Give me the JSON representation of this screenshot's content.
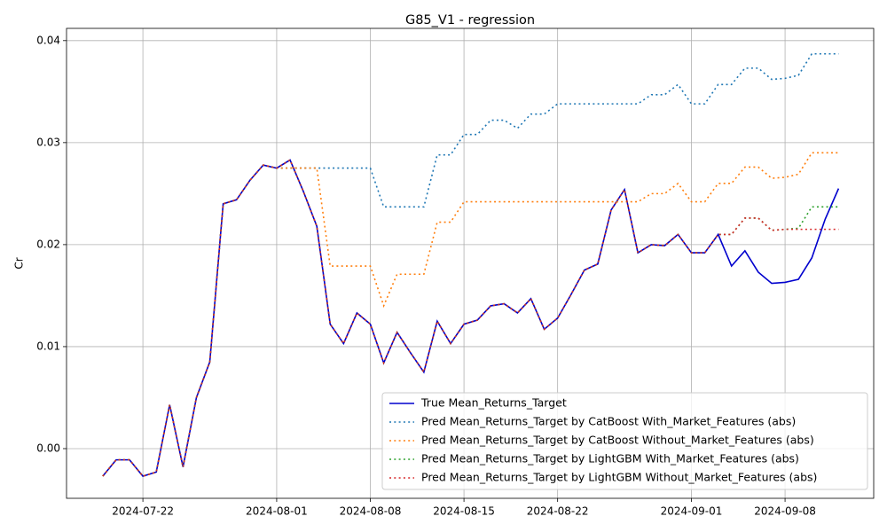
{
  "chart_data": {
    "type": "line",
    "title": "G85_V1 - regression",
    "ylabel": "Cr",
    "x": [
      "2024-07-19",
      "2024-07-20",
      "2024-07-21",
      "2024-07-22",
      "2024-07-23",
      "2024-07-24",
      "2024-07-25",
      "2024-07-26",
      "2024-07-27",
      "2024-07-28",
      "2024-07-29",
      "2024-07-30",
      "2024-07-31",
      "2024-08-01",
      "2024-08-02",
      "2024-08-03",
      "2024-08-04",
      "2024-08-05",
      "2024-08-06",
      "2024-08-07",
      "2024-08-08",
      "2024-08-09",
      "2024-08-10",
      "2024-08-11",
      "2024-08-12",
      "2024-08-13",
      "2024-08-14",
      "2024-08-15",
      "2024-08-16",
      "2024-08-17",
      "2024-08-18",
      "2024-08-19",
      "2024-08-20",
      "2024-08-21",
      "2024-08-22",
      "2024-08-23",
      "2024-08-24",
      "2024-08-25",
      "2024-08-26",
      "2024-08-27",
      "2024-08-28",
      "2024-08-29",
      "2024-08-30",
      "2024-08-31",
      "2024-09-01",
      "2024-09-02",
      "2024-09-03",
      "2024-09-04",
      "2024-09-05",
      "2024-09-06",
      "2024-09-07",
      "2024-09-08",
      "2024-09-09",
      "2024-09-10",
      "2024-09-11",
      "2024-09-12"
    ],
    "series": [
      {
        "name": "True Mean_Returns_Target",
        "color": "#0000cd",
        "linestyle": "solid",
        "values": [
          -0.0027,
          -0.0011,
          -0.0011,
          -0.0027,
          -0.0023,
          0.0043,
          -0.0018,
          0.005,
          0.0085,
          0.024,
          0.0244,
          0.0263,
          0.0278,
          0.0275,
          0.0283,
          0.0252,
          0.0218,
          0.0122,
          0.0103,
          0.0133,
          0.0122,
          0.0084,
          0.0114,
          0.0094,
          0.0075,
          0.0125,
          0.0103,
          0.0122,
          0.0126,
          0.014,
          0.0142,
          0.0133,
          0.0147,
          0.0117,
          0.0128,
          0.0151,
          0.0175,
          0.0181,
          0.0234,
          0.0254,
          0.0192,
          0.02,
          0.0199,
          0.021,
          0.0192,
          0.0192,
          0.021,
          0.0179,
          0.0194,
          0.0173,
          0.0162,
          0.0163,
          0.0166,
          0.0187,
          0.0225,
          0.0255
        ]
      },
      {
        "name": "Pred Mean_Returns_Target by CatBoost With_Market_Features (abs)",
        "color": "#1f77b4",
        "linestyle": "dotted",
        "values": [
          -0.0027,
          -0.0011,
          -0.0011,
          -0.0027,
          -0.0023,
          0.0043,
          -0.0018,
          0.005,
          0.0085,
          0.024,
          0.0244,
          0.0263,
          0.0278,
          0.0275,
          0.0275,
          0.0275,
          0.0275,
          0.0275,
          0.0275,
          0.0275,
          0.0275,
          0.0237,
          0.0237,
          0.0237,
          0.0237,
          0.0288,
          0.0288,
          0.0308,
          0.0308,
          0.0322,
          0.0322,
          0.0314,
          0.0328,
          0.0328,
          0.0338,
          0.0338,
          0.0338,
          0.0338,
          0.0338,
          0.0338,
          0.0338,
          0.0347,
          0.0347,
          0.0357,
          0.0338,
          0.0338,
          0.0357,
          0.0357,
          0.0373,
          0.0373,
          0.0362,
          0.0363,
          0.0366,
          0.0387,
          0.0387,
          0.0387
        ]
      },
      {
        "name": "Pred Mean_Returns_Target by CatBoost Without_Market_Features (abs)",
        "color": "#ff7f0e",
        "linestyle": "dotted",
        "values": [
          -0.0027,
          -0.0011,
          -0.0011,
          -0.0027,
          -0.0023,
          0.0043,
          -0.0018,
          0.005,
          0.0085,
          0.024,
          0.0244,
          0.0263,
          0.0278,
          0.0275,
          0.0275,
          0.0275,
          0.0275,
          0.0179,
          0.0179,
          0.0179,
          0.0179,
          0.014,
          0.0171,
          0.0171,
          0.0171,
          0.0222,
          0.0222,
          0.0242,
          0.0242,
          0.0242,
          0.0242,
          0.0242,
          0.0242,
          0.0242,
          0.0242,
          0.0242,
          0.0242,
          0.0242,
          0.0242,
          0.0242,
          0.0242,
          0.025,
          0.025,
          0.026,
          0.0242,
          0.0242,
          0.026,
          0.026,
          0.0276,
          0.0276,
          0.0265,
          0.0266,
          0.0269,
          0.029,
          0.029,
          0.029
        ]
      },
      {
        "name": "Pred Mean_Returns_Target by LightGBM With_Market_Features (abs)",
        "color": "#2ca02c",
        "linestyle": "dotted",
        "values": [
          -0.0027,
          -0.0011,
          -0.0011,
          -0.0027,
          -0.0023,
          0.0043,
          -0.0018,
          0.005,
          0.0085,
          0.024,
          0.0244,
          0.0263,
          0.0278,
          0.0275,
          0.0283,
          0.0252,
          0.0218,
          0.0122,
          0.0103,
          0.0133,
          0.0122,
          0.0084,
          0.0114,
          0.0094,
          0.0075,
          0.0125,
          0.0103,
          0.0122,
          0.0126,
          0.014,
          0.0142,
          0.0133,
          0.0147,
          0.0117,
          0.0128,
          0.0151,
          0.0175,
          0.0181,
          0.0234,
          0.0254,
          0.0192,
          0.02,
          0.0199,
          0.021,
          0.0192,
          0.0192,
          0.021,
          0.021,
          0.0226,
          0.0226,
          0.0214,
          0.0215,
          0.0216,
          0.0237,
          0.0237,
          0.0237
        ]
      },
      {
        "name": "Pred Mean_Returns_Target by LightGBM Without_Market_Features (abs)",
        "color": "#d62728",
        "linestyle": "dotted",
        "values": [
          -0.0027,
          -0.0011,
          -0.0011,
          -0.0027,
          -0.0023,
          0.0043,
          -0.0018,
          0.005,
          0.0085,
          0.024,
          0.0244,
          0.0263,
          0.0278,
          0.0275,
          0.0283,
          0.0252,
          0.0218,
          0.0122,
          0.0103,
          0.0133,
          0.0122,
          0.0084,
          0.0114,
          0.0094,
          0.0075,
          0.0125,
          0.0103,
          0.0122,
          0.0126,
          0.014,
          0.0142,
          0.0133,
          0.0147,
          0.0117,
          0.0128,
          0.0151,
          0.0175,
          0.0181,
          0.0234,
          0.0254,
          0.0192,
          0.02,
          0.0199,
          0.021,
          0.0192,
          0.0192,
          0.021,
          0.021,
          0.0226,
          0.0226,
          0.0214,
          0.0215,
          0.0215,
          0.0215,
          0.0215,
          0.0215
        ]
      }
    ],
    "xlim": [
      "2024-07-16T07:00",
      "2024-09-14T15:00"
    ],
    "xticks": [
      "2024-07-22",
      "2024-08-01",
      "2024-08-08",
      "2024-08-15",
      "2024-08-22",
      "2024-09-01",
      "2024-09-08"
    ],
    "ylim": [
      -0.00487,
      0.0412
    ],
    "yticks": [
      {
        "value": 0,
        "label": "0.00"
      },
      0.01,
      0.02,
      0.03,
      0.04
    ],
    "grid": true,
    "legend": "lower right"
  }
}
